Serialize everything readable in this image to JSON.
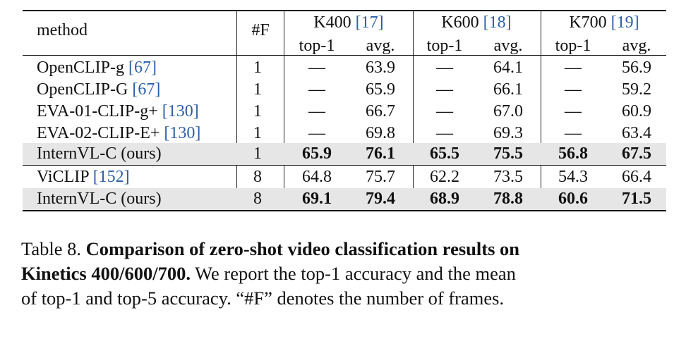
{
  "header": {
    "method": "method",
    "frames": "#F",
    "groups": [
      {
        "name": "K400",
        "ref": "[17]"
      },
      {
        "name": "K600",
        "ref": "[18]"
      },
      {
        "name": "K700",
        "ref": "[19]"
      }
    ],
    "sub": [
      "top-1",
      "avg.",
      "top-1",
      "avg.",
      "top-1",
      "avg."
    ]
  },
  "rows": [
    {
      "name": "OpenCLIP-g",
      "ref": "[67]",
      "frames": "1",
      "values": [
        "—",
        "63.9",
        "—",
        "64.1",
        "—",
        "56.9"
      ],
      "shaded": false,
      "bold": false
    },
    {
      "name": "OpenCLIP-G",
      "ref": "[67]",
      "frames": "1",
      "values": [
        "—",
        "65.9",
        "—",
        "66.1",
        "—",
        "59.2"
      ],
      "shaded": false,
      "bold": false
    },
    {
      "name": "EVA-01-CLIP-g+",
      "ref": "[130]",
      "frames": "1",
      "values": [
        "—",
        "66.7",
        "—",
        "67.0",
        "—",
        "60.9"
      ],
      "shaded": false,
      "bold": false
    },
    {
      "name": "EVA-02-CLIP-E+",
      "ref": "[130]",
      "frames": "1",
      "values": [
        "—",
        "69.8",
        "—",
        "69.3",
        "—",
        "63.4"
      ],
      "shaded": false,
      "bold": false
    },
    {
      "name": "InternVL-C (ours)",
      "ref": "",
      "frames": "1",
      "values": [
        "65.9",
        "76.1",
        "65.5",
        "75.5",
        "56.8",
        "67.5"
      ],
      "shaded": true,
      "bold": true
    },
    {
      "name": "ViCLIP",
      "ref": "[152]",
      "frames": "8",
      "values": [
        "64.8",
        "75.7",
        "62.2",
        "73.5",
        "54.3",
        "66.4"
      ],
      "shaded": false,
      "bold": false
    },
    {
      "name": "InternVL-C (ours)",
      "ref": "",
      "frames": "8",
      "values": [
        "69.1",
        "79.4",
        "68.9",
        "78.8",
        "60.6",
        "71.5"
      ],
      "shaded": true,
      "bold": true
    }
  ],
  "caption": {
    "label": "Table 8.",
    "title_line1": "Comparison of zero-shot video classification results on",
    "title_line2": "Kinetics 400/600/700.",
    "rest_line2": "We report the top-1 accuracy and the mean",
    "line3": "of top-1 and top-5 accuracy. “#F” denotes the number of frames."
  }
}
